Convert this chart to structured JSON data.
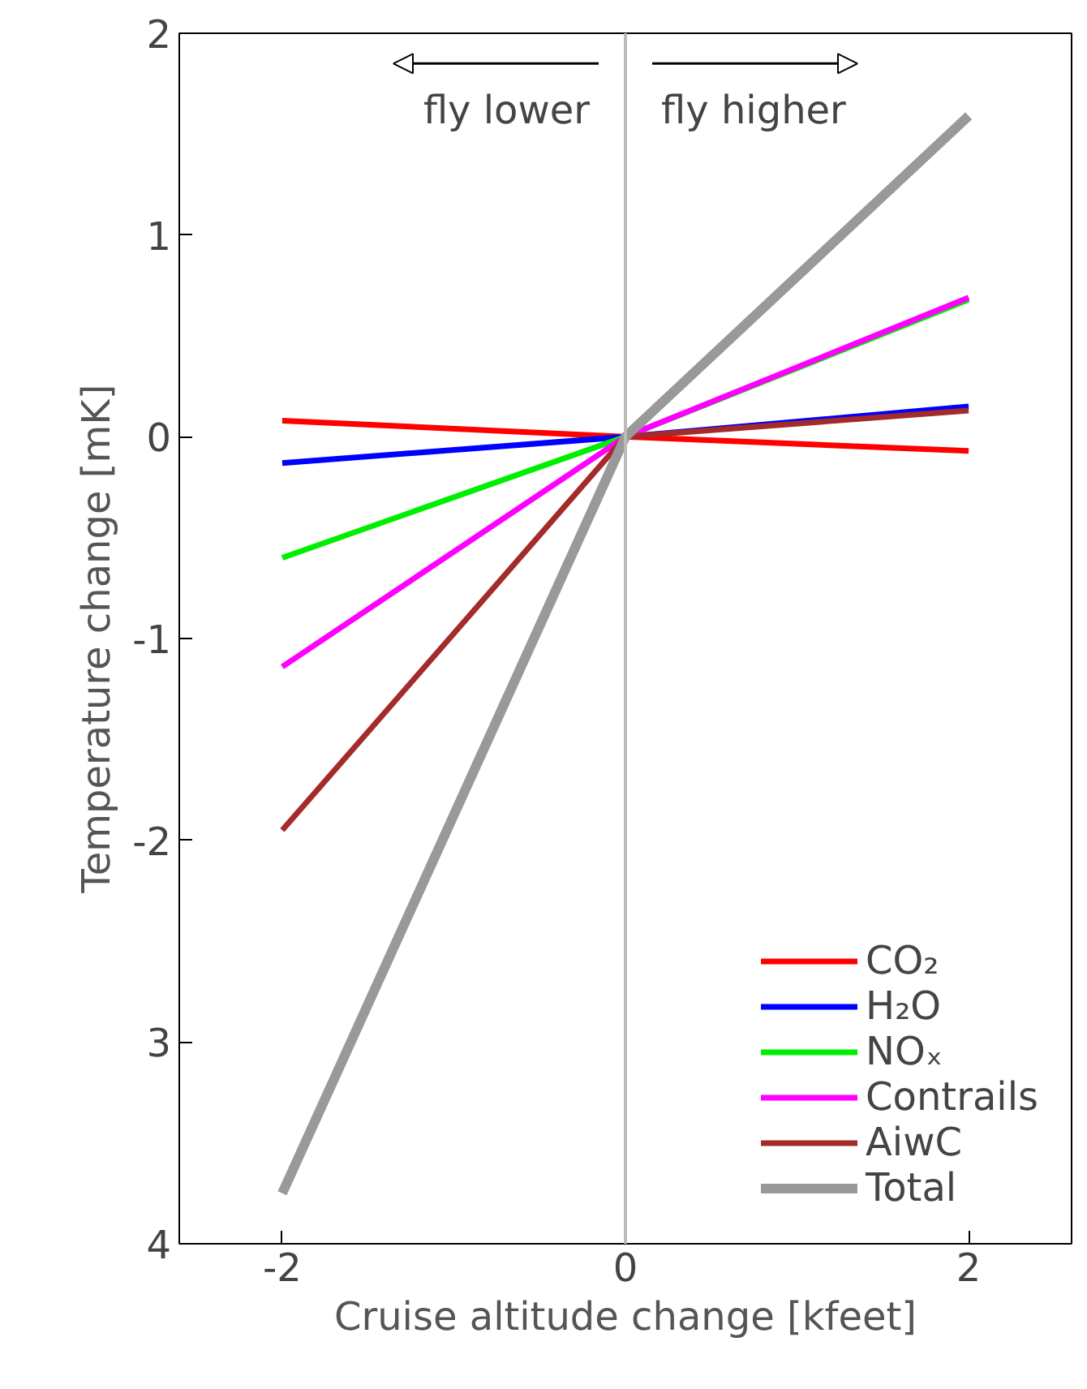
{
  "chart_data": {
    "type": "line",
    "xlabel": "Cruise altitude change [kfeet]",
    "ylabel": "Temperature change [mK]",
    "xlim": [
      -2.6,
      2.6
    ],
    "xticks": [
      -2,
      0,
      2
    ],
    "ylim": [
      -4,
      2
    ],
    "yticks": [
      {
        "value": -4,
        "label": "4"
      },
      {
        "value": -3,
        "label": "3"
      },
      -2,
      -1,
      0,
      1,
      2
    ],
    "grid": false,
    "legend": "bottom right",
    "marker": "none",
    "line_style": "solid",
    "ref_lines": [
      {
        "axis": "x",
        "value": 0,
        "color": "#bbbbbb"
      }
    ],
    "annotations": [
      "fly lower",
      "fly higher"
    ],
    "series": [
      {
        "name": "CO₂",
        "color": "#ff0000",
        "x": [
          -2,
          0,
          2
        ],
        "values": [
          0.08,
          0,
          -0.07
        ]
      },
      {
        "name": "H₂O",
        "color": "#0000ff",
        "x": [
          -2,
          0,
          2
        ],
        "values": [
          -0.13,
          0,
          0.15
        ]
      },
      {
        "name": "NOₓ",
        "color": "#00ee00",
        "x": [
          -2,
          0,
          2
        ],
        "values": [
          -0.6,
          0,
          0.68
        ]
      },
      {
        "name": "Contrails",
        "color": "#ff00ff",
        "x": [
          -2,
          0,
          2
        ],
        "values": [
          -1.14,
          0,
          0.69
        ]
      },
      {
        "name": "AiwC",
        "color": "#a52a2a",
        "x": [
          -2,
          0,
          2
        ],
        "values": [
          -1.95,
          0,
          0.13
        ]
      },
      {
        "name": "Total",
        "color": "#999999",
        "x": [
          -2,
          0,
          2
        ],
        "values": [
          -3.75,
          0,
          1.59
        ]
      }
    ]
  }
}
